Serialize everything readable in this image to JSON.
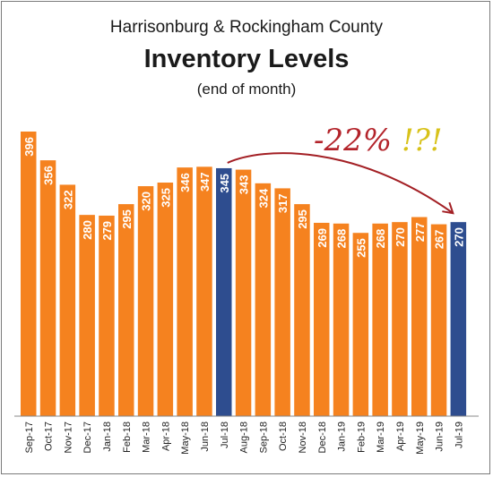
{
  "title": {
    "line1": "Harrisonburg & Rockingham County",
    "line2": "Inventory Levels",
    "line3": "(end of month)"
  },
  "chart_data": {
    "type": "bar",
    "categories": [
      "Sep-17",
      "Oct-17",
      "Nov-17",
      "Dec-17",
      "Jan-18",
      "Feb-18",
      "Mar-18",
      "Apr-18",
      "May-18",
      "Jun-18",
      "Jul-18",
      "Aug-18",
      "Sep-18",
      "Oct-18",
      "Nov-18",
      "Dec-18",
      "Jan-19",
      "Feb-19",
      "Mar-19",
      "Apr-19",
      "May-19",
      "Jun-19",
      "Jul-19"
    ],
    "values": [
      396,
      356,
      322,
      280,
      279,
      295,
      320,
      325,
      346,
      347,
      345,
      343,
      324,
      317,
      295,
      269,
      268,
      255,
      268,
      270,
      277,
      267,
      270
    ],
    "highlighted": [
      "Jul-18",
      "Jul-19"
    ],
    "ylim": [
      0,
      400
    ],
    "grid": false,
    "colors": {
      "bar": "#f5821f",
      "highlight": "#2e4d8f",
      "label": "#ffffff",
      "arrow": "#a31f24",
      "annotation_pct": "#b3232a",
      "annotation_marks": "#d8c21a"
    },
    "annotation": {
      "text_pct": "-22%",
      "text_marks": "!?!"
    }
  }
}
